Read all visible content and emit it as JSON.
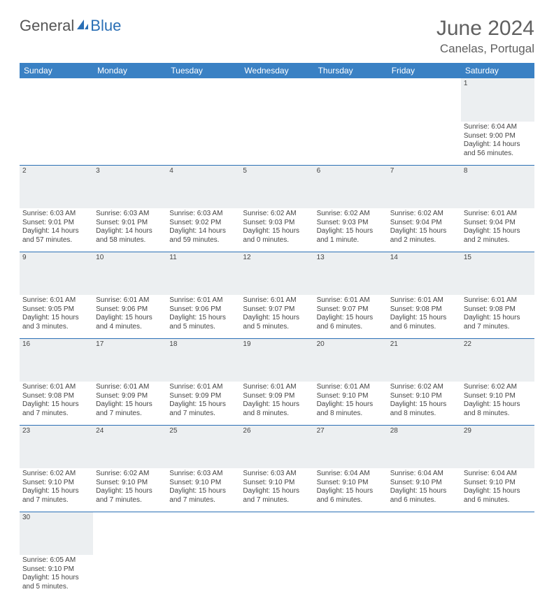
{
  "logo": {
    "text_general": "General",
    "text_blue": "Blue"
  },
  "header": {
    "month_title": "June 2024",
    "location": "Canelas, Portugal"
  },
  "colors": {
    "header_bg": "#3a81c4",
    "header_text": "#ffffff",
    "border": "#2a6fb5",
    "daynum_bg": "#eceff1",
    "text": "#444444",
    "title_text": "#606060"
  },
  "day_headers": [
    "Sunday",
    "Monday",
    "Tuesday",
    "Wednesday",
    "Thursday",
    "Friday",
    "Saturday"
  ],
  "weeks": [
    [
      null,
      null,
      null,
      null,
      null,
      null,
      {
        "n": "1",
        "sr": "Sunrise: 6:04 AM",
        "ss": "Sunset: 9:00 PM",
        "dl": "Daylight: 14 hours and 56 minutes."
      }
    ],
    [
      {
        "n": "2",
        "sr": "Sunrise: 6:03 AM",
        "ss": "Sunset: 9:01 PM",
        "dl": "Daylight: 14 hours and 57 minutes."
      },
      {
        "n": "3",
        "sr": "Sunrise: 6:03 AM",
        "ss": "Sunset: 9:01 PM",
        "dl": "Daylight: 14 hours and 58 minutes."
      },
      {
        "n": "4",
        "sr": "Sunrise: 6:03 AM",
        "ss": "Sunset: 9:02 PM",
        "dl": "Daylight: 14 hours and 59 minutes."
      },
      {
        "n": "5",
        "sr": "Sunrise: 6:02 AM",
        "ss": "Sunset: 9:03 PM",
        "dl": "Daylight: 15 hours and 0 minutes."
      },
      {
        "n": "6",
        "sr": "Sunrise: 6:02 AM",
        "ss": "Sunset: 9:03 PM",
        "dl": "Daylight: 15 hours and 1 minute."
      },
      {
        "n": "7",
        "sr": "Sunrise: 6:02 AM",
        "ss": "Sunset: 9:04 PM",
        "dl": "Daylight: 15 hours and 2 minutes."
      },
      {
        "n": "8",
        "sr": "Sunrise: 6:01 AM",
        "ss": "Sunset: 9:04 PM",
        "dl": "Daylight: 15 hours and 2 minutes."
      }
    ],
    [
      {
        "n": "9",
        "sr": "Sunrise: 6:01 AM",
        "ss": "Sunset: 9:05 PM",
        "dl": "Daylight: 15 hours and 3 minutes."
      },
      {
        "n": "10",
        "sr": "Sunrise: 6:01 AM",
        "ss": "Sunset: 9:06 PM",
        "dl": "Daylight: 15 hours and 4 minutes."
      },
      {
        "n": "11",
        "sr": "Sunrise: 6:01 AM",
        "ss": "Sunset: 9:06 PM",
        "dl": "Daylight: 15 hours and 5 minutes."
      },
      {
        "n": "12",
        "sr": "Sunrise: 6:01 AM",
        "ss": "Sunset: 9:07 PM",
        "dl": "Daylight: 15 hours and 5 minutes."
      },
      {
        "n": "13",
        "sr": "Sunrise: 6:01 AM",
        "ss": "Sunset: 9:07 PM",
        "dl": "Daylight: 15 hours and 6 minutes."
      },
      {
        "n": "14",
        "sr": "Sunrise: 6:01 AM",
        "ss": "Sunset: 9:08 PM",
        "dl": "Daylight: 15 hours and 6 minutes."
      },
      {
        "n": "15",
        "sr": "Sunrise: 6:01 AM",
        "ss": "Sunset: 9:08 PM",
        "dl": "Daylight: 15 hours and 7 minutes."
      }
    ],
    [
      {
        "n": "16",
        "sr": "Sunrise: 6:01 AM",
        "ss": "Sunset: 9:08 PM",
        "dl": "Daylight: 15 hours and 7 minutes."
      },
      {
        "n": "17",
        "sr": "Sunrise: 6:01 AM",
        "ss": "Sunset: 9:09 PM",
        "dl": "Daylight: 15 hours and 7 minutes."
      },
      {
        "n": "18",
        "sr": "Sunrise: 6:01 AM",
        "ss": "Sunset: 9:09 PM",
        "dl": "Daylight: 15 hours and 7 minutes."
      },
      {
        "n": "19",
        "sr": "Sunrise: 6:01 AM",
        "ss": "Sunset: 9:09 PM",
        "dl": "Daylight: 15 hours and 8 minutes."
      },
      {
        "n": "20",
        "sr": "Sunrise: 6:01 AM",
        "ss": "Sunset: 9:10 PM",
        "dl": "Daylight: 15 hours and 8 minutes."
      },
      {
        "n": "21",
        "sr": "Sunrise: 6:02 AM",
        "ss": "Sunset: 9:10 PM",
        "dl": "Daylight: 15 hours and 8 minutes."
      },
      {
        "n": "22",
        "sr": "Sunrise: 6:02 AM",
        "ss": "Sunset: 9:10 PM",
        "dl": "Daylight: 15 hours and 8 minutes."
      }
    ],
    [
      {
        "n": "23",
        "sr": "Sunrise: 6:02 AM",
        "ss": "Sunset: 9:10 PM",
        "dl": "Daylight: 15 hours and 7 minutes."
      },
      {
        "n": "24",
        "sr": "Sunrise: 6:02 AM",
        "ss": "Sunset: 9:10 PM",
        "dl": "Daylight: 15 hours and 7 minutes."
      },
      {
        "n": "25",
        "sr": "Sunrise: 6:03 AM",
        "ss": "Sunset: 9:10 PM",
        "dl": "Daylight: 15 hours and 7 minutes."
      },
      {
        "n": "26",
        "sr": "Sunrise: 6:03 AM",
        "ss": "Sunset: 9:10 PM",
        "dl": "Daylight: 15 hours and 7 minutes."
      },
      {
        "n": "27",
        "sr": "Sunrise: 6:04 AM",
        "ss": "Sunset: 9:10 PM",
        "dl": "Daylight: 15 hours and 6 minutes."
      },
      {
        "n": "28",
        "sr": "Sunrise: 6:04 AM",
        "ss": "Sunset: 9:10 PM",
        "dl": "Daylight: 15 hours and 6 minutes."
      },
      {
        "n": "29",
        "sr": "Sunrise: 6:04 AM",
        "ss": "Sunset: 9:10 PM",
        "dl": "Daylight: 15 hours and 6 minutes."
      }
    ],
    [
      {
        "n": "30",
        "sr": "Sunrise: 6:05 AM",
        "ss": "Sunset: 9:10 PM",
        "dl": "Daylight: 15 hours and 5 minutes."
      },
      null,
      null,
      null,
      null,
      null,
      null
    ]
  ]
}
